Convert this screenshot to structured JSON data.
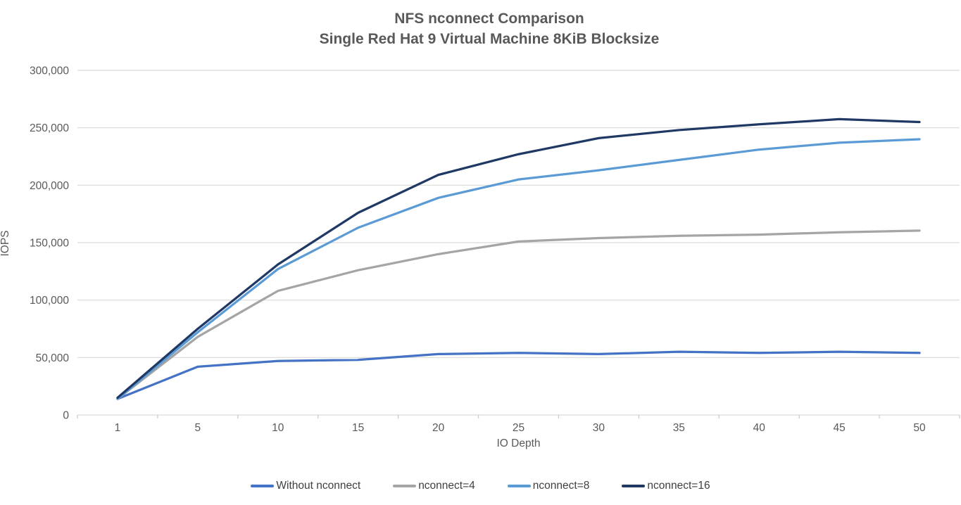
{
  "chart_data": {
    "type": "line",
    "title": "NFS nconnect Comparison",
    "subtitle": "Single Red Hat 9 Virtual Machine 8KiB Blocksize",
    "xlabel": "IO Depth",
    "ylabel": "IOPS",
    "categories": [
      1,
      5,
      10,
      15,
      20,
      25,
      30,
      35,
      40,
      45,
      50
    ],
    "series": [
      {
        "name": "Without nconnect",
        "color": "#4472C4",
        "values": [
          14000,
          42000,
          47000,
          48000,
          53000,
          54000,
          53000,
          55000,
          54000,
          55000,
          54000
        ]
      },
      {
        "name": "nconnect=4",
        "color": "#A5A5A5",
        "values": [
          14000,
          68000,
          108000,
          126000,
          140000,
          151000,
          154000,
          156000,
          157000,
          159000,
          160500
        ]
      },
      {
        "name": "nconnect=8",
        "color": "#5B9BD5",
        "values": [
          14000,
          72000,
          127000,
          163000,
          189000,
          205000,
          213000,
          222000,
          231000,
          237000,
          240000
        ]
      },
      {
        "name": "nconnect=16",
        "color": "#1F3864",
        "values": [
          15000,
          75000,
          131000,
          176000,
          209000,
          227000,
          241000,
          248000,
          253000,
          257500,
          255000
        ]
      }
    ],
    "ylim": [
      0,
      300000
    ],
    "y_tick_step": 50000,
    "y_tick_labels": [
      "0",
      "50,000",
      "100,000",
      "150,000",
      "200,000",
      "250,000",
      "300,000"
    ],
    "grid": true,
    "legend_position": "bottom",
    "axis_text_color": "#595959",
    "legend_text_color": "#404040",
    "grid_color": "#D9D9D9",
    "tick_color": "#C8C8C8"
  }
}
